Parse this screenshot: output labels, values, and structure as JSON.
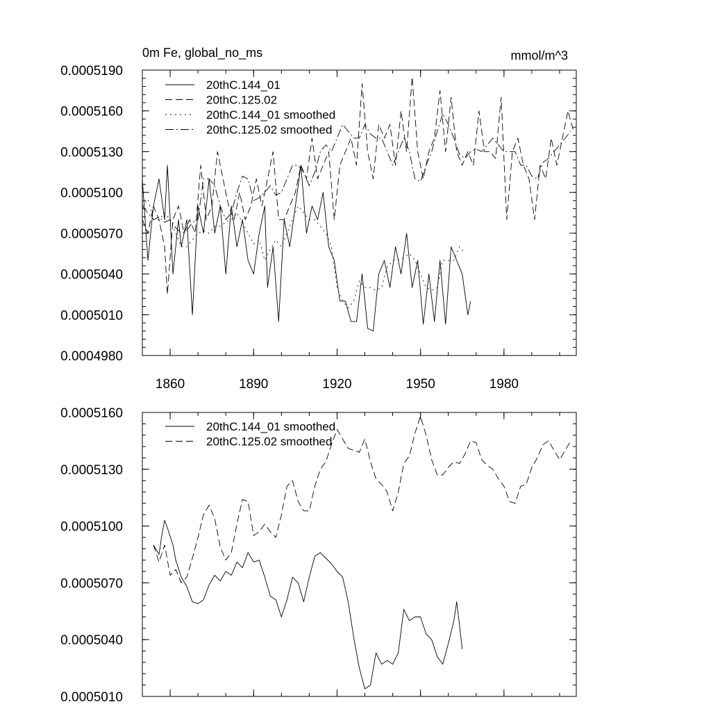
{
  "chart_data": [
    {
      "type": "line",
      "title": "0m Fe, global_no_ms",
      "units": "mmol/m^3",
      "xlim": [
        1850,
        2006
      ],
      "ylim": [
        0.000498,
        0.000519
      ],
      "xticks": [
        1860,
        1890,
        1920,
        1950,
        1980
      ],
      "xtick_labels": [
        "1860",
        "1890",
        "1920",
        "1950",
        "1980"
      ],
      "yticks": [
        0.000498,
        0.000501,
        0.000504,
        0.000507,
        0.00051,
        0.000513,
        0.000516,
        0.000519
      ],
      "ytick_labels": [
        "0.0004980",
        "0.0005010",
        "0.0005040",
        "0.0005070",
        "0.0005100",
        "0.0005130",
        "0.0005160",
        "0.0005190"
      ],
      "legend_position": "top-left",
      "series": [
        {
          "name": "20thC.144_01",
          "dash": "",
          "x": [
            1850,
            1852,
            1854,
            1856,
            1858,
            1859,
            1861,
            1863,
            1864,
            1866,
            1868,
            1870,
            1872,
            1874,
            1876,
            1878,
            1880,
            1882,
            1884,
            1886,
            1888,
            1890,
            1892,
            1894,
            1895,
            1897,
            1899,
            1901,
            1903,
            1905,
            1907,
            1909,
            1911,
            1913,
            1915,
            1917,
            1919,
            1921,
            1923,
            1925,
            1927,
            1929,
            1931,
            1933,
            1935,
            1937,
            1939,
            1941,
            1943,
            1945,
            1947,
            1949,
            1951,
            1953,
            1955,
            1957,
            1959,
            1961,
            1963,
            1965,
            1967,
            1968
          ],
          "values": [
            0.000511,
            0.000505,
            0.000509,
            0.000511,
            0.000508,
            0.000512,
            0.000504,
            0.000508,
            0.000506,
            0.000508,
            0.000501,
            0.000509,
            0.000507,
            0.000511,
            0.000507,
            0.000509,
            0.000504,
            0.000509,
            0.000506,
            0.000508,
            0.000505,
            0.000504,
            0.000507,
            0.000509,
            0.000503,
            0.000506,
            0.0005005,
            0.000508,
            0.000506,
            0.000509,
            0.000512,
            0.000507,
            0.000509,
            0.000508,
            0.00051,
            0.000506,
            0.000505,
            0.000502,
            0.000502,
            0.0005005,
            0.0005005,
            0.000504,
            0.0005,
            0.0004998,
            0.000504,
            0.000505,
            0.000503,
            0.000506,
            0.000504,
            0.000507,
            0.000503,
            0.000505,
            0.0005003,
            0.000504,
            0.0005005,
            0.000505,
            0.0005003,
            0.000506,
            0.000505,
            0.000504,
            0.000501,
            0.000502
          ]
        },
        {
          "name": "20thC.125.02",
          "dash": "10 5",
          "x": [
            1850,
            1852,
            1854,
            1856,
            1858,
            1859,
            1861,
            1863,
            1865,
            1867,
            1869,
            1871,
            1873,
            1875,
            1877,
            1879,
            1881,
            1883,
            1885,
            1887,
            1889,
            1891,
            1893,
            1895,
            1897,
            1899,
            1901,
            1903,
            1905,
            1907,
            1909,
            1911,
            1913,
            1915,
            1917,
            1919,
            1921,
            1923,
            1925,
            1927,
            1929,
            1931,
            1933,
            1935,
            1937,
            1939,
            1941,
            1943,
            1945,
            1947,
            1949,
            1951,
            1953,
            1955,
            1957,
            1959,
            1961,
            1963,
            1965,
            1967,
            1969,
            1971,
            1973,
            1975,
            1977,
            1979,
            1981,
            1983,
            1985,
            1987,
            1989,
            1991,
            1993,
            1995,
            1997,
            1999,
            2001,
            2003,
            2005
          ],
          "values": [
            0.000508,
            0.000507,
            0.000509,
            0.000508,
            0.000506,
            0.0005025,
            0.000508,
            0.000509,
            0.000507,
            0.000508,
            0.000507,
            0.000512,
            0.000508,
            0.000509,
            0.000513,
            0.000511,
            0.000509,
            0.000508,
            0.00051,
            0.000508,
            0.000509,
            0.000511,
            0.000509,
            0.000511,
            0.000513,
            0.000508,
            0.000508,
            0.000509,
            0.00051,
            0.000512,
            0.000511,
            0.000514,
            0.000511,
            0.000512,
            0.000513,
            0.000508,
            0.000512,
            0.000513,
            0.000514,
            0.000512,
            0.000518,
            0.000513,
            0.000511,
            0.000515,
            0.000514,
            0.000515,
            0.000512,
            0.000516,
            0.000513,
            0.0005185,
            0.000513,
            0.000511,
            0.000513,
            0.000514,
            0.0005175,
            0.000513,
            0.000517,
            0.000513,
            0.000512,
            0.000513,
            0.000512,
            0.000516,
            0.000513,
            0.000513,
            0.0005125,
            0.000517,
            0.000508,
            0.000513,
            0.000514,
            0.000512,
            0.000511,
            0.000508,
            0.000512,
            0.000511,
            0.000514,
            0.000512,
            0.000514,
            0.000516,
            0.0005145
          ]
        },
        {
          "name": "20thC.144_01 smoothed",
          "dash": "2 5",
          "x": [
            1850,
            1852,
            1854,
            1856,
            1858,
            1860,
            1862,
            1864,
            1866,
            1868,
            1870,
            1872,
            1874,
            1876,
            1878,
            1880,
            1882,
            1884,
            1886,
            1888,
            1890,
            1892,
            1894,
            1896,
            1898,
            1900,
            1902,
            1904,
            1906,
            1908,
            1910,
            1912,
            1914,
            1916,
            1918,
            1920,
            1922,
            1924,
            1926,
            1928,
            1930,
            1932,
            1934,
            1936,
            1938,
            1940,
            1942,
            1944,
            1946,
            1948,
            1950,
            1952,
            1954,
            1956,
            1958,
            1960,
            1962,
            1964,
            1966
          ],
          "values": [
            0.000509,
            0.0005095,
            0.000508,
            0.000508,
            0.0005085,
            0.000508,
            0.000507,
            0.000506,
            0.000506,
            0.0005065,
            0.000507,
            0.0005072,
            0.000507,
            0.0005075,
            0.0005075,
            0.0005078,
            0.000508,
            0.0005085,
            0.0005078,
            0.000507,
            0.0005062,
            0.0005065,
            0.000505,
            0.0005058,
            0.0005065,
            0.000506,
            0.000507,
            0.000508,
            0.000509,
            0.0005085,
            0.000508,
            0.000508,
            0.0005075,
            0.000507,
            0.000506,
            0.000503,
            0.000502,
            0.0005015,
            0.000502,
            0.0005035,
            0.000503,
            0.000503,
            0.0005028,
            0.000503,
            0.0005045,
            0.000505,
            0.000505,
            0.0005052,
            0.0005055,
            0.000505,
            0.000504,
            0.000503,
            0.0005028,
            0.000503,
            0.000505,
            0.000505,
            0.000505,
            0.000506,
            0.0005055
          ]
        },
        {
          "name": "20thC.125.02 smoothed",
          "dash": "12 4 2 4",
          "x": [
            1850,
            1852,
            1854,
            1856,
            1858,
            1860,
            1862,
            1864,
            1866,
            1868,
            1870,
            1872,
            1874,
            1876,
            1878,
            1880,
            1882,
            1884,
            1886,
            1888,
            1890,
            1892,
            1894,
            1896,
            1898,
            1900,
            1902,
            1904,
            1906,
            1908,
            1910,
            1912,
            1914,
            1916,
            1918,
            1920,
            1922,
            1924,
            1926,
            1928,
            1930,
            1932,
            1934,
            1936,
            1938,
            1940,
            1942,
            1944,
            1946,
            1948,
            1950,
            1952,
            1954,
            1956,
            1958,
            1960,
            1962,
            1964,
            1966,
            1968,
            1970,
            1972,
            1974,
            1976,
            1978,
            1980,
            1982,
            1984,
            1986,
            1988,
            1990,
            1992,
            1994,
            1996,
            1998,
            2000,
            2002,
            2004
          ],
          "values": [
            0.000509,
            0.0005085,
            0.000508,
            0.0005082,
            0.0005078,
            0.000508,
            0.0005074,
            0.000507,
            0.0005072,
            0.0005078,
            0.000508,
            0.000511,
            0.000511,
            0.0005105,
            0.000509,
            0.000508,
            0.0005085,
            0.00051,
            0.0005112,
            0.000511,
            0.0005094,
            0.0005096,
            0.00051,
            0.0005105,
            0.0005098,
            0.00051,
            0.000511,
            0.000512,
            0.000512,
            0.0005115,
            0.0005105,
            0.0005115,
            0.000513,
            0.0005135,
            0.000513,
            0.000514,
            0.000515,
            0.0005145,
            0.000514,
            0.000514,
            0.000515,
            0.0005143,
            0.000514,
            0.000514,
            0.000513,
            0.000512,
            0.000513,
            0.000514,
            0.000513,
            0.000511,
            0.0005108,
            0.000512,
            0.000513,
            0.0005145,
            0.0005158,
            0.000515,
            0.000514,
            0.0005128,
            0.0005125,
            0.000513,
            0.0005132,
            0.000513,
            0.0005135,
            0.000514,
            0.0005135,
            0.000513,
            0.000513,
            0.000513,
            0.000512,
            0.000512,
            0.0005112,
            0.000511,
            0.0005122,
            0.0005125,
            0.000513,
            0.0005135,
            0.000514,
            0.0005145
          ]
        }
      ]
    },
    {
      "type": "line",
      "title": "",
      "xlim": [
        1850,
        2006
      ],
      "ylim": [
        0.000501,
        0.000516
      ],
      "yticks": [
        0.000501,
        0.000504,
        0.000507,
        0.00051,
        0.000513,
        0.000516
      ],
      "ytick_labels": [
        "0.0005010",
        "0.0005040",
        "0.0005070",
        "0.0005100",
        "0.0005130",
        "0.0005160"
      ],
      "xticks": [
        1860,
        1890,
        1920,
        1950,
        1980
      ],
      "legend_position": "top-left",
      "series": [
        {
          "name": "20thC.144_01 smoothed",
          "dash": "",
          "x": [
            1854,
            1856,
            1857,
            1858,
            1859,
            1861,
            1862,
            1864,
            1866,
            1868,
            1870,
            1872,
            1874,
            1876,
            1878,
            1880,
            1882,
            1884,
            1886,
            1888,
            1890,
            1892,
            1894,
            1896,
            1898,
            1900,
            1902,
            1904,
            1906,
            1908,
            1910,
            1912,
            1914,
            1916,
            1918,
            1920,
            1922,
            1924,
            1926,
            1928,
            1930,
            1932,
            1934,
            1936,
            1938,
            1940,
            1942,
            1944,
            1946,
            1948,
            1950,
            1952,
            1954,
            1956,
            1958,
            1960,
            1962,
            1963,
            1964,
            1965
          ],
          "values": [
            0.000509,
            0.0005085,
            0.0005095,
            0.0005103,
            0.0005099,
            0.000509,
            0.0005082,
            0.0005073,
            0.0005068,
            0.000506,
            0.0005059,
            0.0005061,
            0.0005069,
            0.0005074,
            0.0005071,
            0.0005076,
            0.0005074,
            0.0005081,
            0.0005078,
            0.0005086,
            0.0005081,
            0.0005082,
            0.0005073,
            0.0005063,
            0.0005061,
            0.0005052,
            0.0005061,
            0.0005073,
            0.000507,
            0.000506,
            0.0005073,
            0.0005084,
            0.0005086,
            0.0005083,
            0.000508,
            0.0005076,
            0.0005073,
            0.000506,
            0.0005041,
            0.0005025,
            0.0005014,
            0.0005016,
            0.0005033,
            0.0005027,
            0.0005029,
            0.0005027,
            0.0005033,
            0.0005056,
            0.000505,
            0.0005052,
            0.0005052,
            0.0005043,
            0.000504,
            0.0005031,
            0.0005027,
            0.0005038,
            0.000505,
            0.000506,
            0.0005048,
            0.0005035
          ]
        },
        {
          "name": "20thC.125.02 smoothed",
          "dash": "10 5",
          "x": [
            1854,
            1856,
            1858,
            1860,
            1862,
            1864,
            1866,
            1868,
            1870,
            1872,
            1874,
            1876,
            1878,
            1880,
            1882,
            1884,
            1886,
            1888,
            1890,
            1892,
            1894,
            1896,
            1898,
            1900,
            1902,
            1904,
            1906,
            1908,
            1910,
            1912,
            1914,
            1916,
            1918,
            1920,
            1922,
            1924,
            1926,
            1928,
            1930,
            1932,
            1934,
            1936,
            1938,
            1940,
            1942,
            1944,
            1946,
            1948,
            1950,
            1952,
            1954,
            1956,
            1958,
            1960,
            1962,
            1964,
            1966,
            1968,
            1970,
            1972,
            1974,
            1976,
            1978,
            1980,
            1982,
            1984,
            1986,
            1988,
            1990,
            1992,
            1994,
            1996,
            1998,
            2000,
            2002,
            2004
          ],
          "values": [
            0.000509,
            0.0005081,
            0.000509,
            0.0005074,
            0.0005077,
            0.000507,
            0.0005073,
            0.0005083,
            0.0005094,
            0.0005106,
            0.0005111,
            0.0005104,
            0.0005089,
            0.0005082,
            0.0005086,
            0.0005101,
            0.0005114,
            0.0005113,
            0.0005095,
            0.0005097,
            0.0005101,
            0.0005097,
            0.0005094,
            0.0005106,
            0.0005121,
            0.0005124,
            0.0005113,
            0.0005108,
            0.0005108,
            0.0005121,
            0.000513,
            0.0005134,
            0.0005143,
            0.0005151,
            0.0005146,
            0.0005141,
            0.000514,
            0.0005139,
            0.0005146,
            0.0005134,
            0.0005125,
            0.0005122,
            0.0005118,
            0.0005108,
            0.0005118,
            0.0005133,
            0.0005137,
            0.0005149,
            0.0005158,
            0.0005148,
            0.0005135,
            0.0005127,
            0.0005127,
            0.0005131,
            0.0005134,
            0.0005133,
            0.0005138,
            0.0005145,
            0.0005144,
            0.0005135,
            0.0005132,
            0.000513,
            0.0005125,
            0.0005121,
            0.0005113,
            0.0005112,
            0.0005121,
            0.0005122,
            0.0005131,
            0.0005136,
            0.0005143,
            0.0005145,
            0.000514,
            0.0005135,
            0.000514,
            0.0005145
          ]
        }
      ]
    }
  ]
}
